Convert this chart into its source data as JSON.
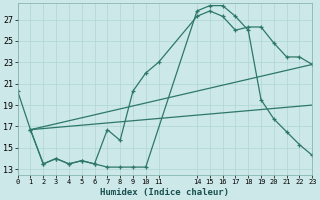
{
  "xlabel": "Humidex (Indice chaleur)",
  "bg_color": "#cde8e8",
  "line_color": "#2d7868",
  "grid_color": "#aed4d4",
  "xlim": [
    0,
    23
  ],
  "ylim": [
    12.5,
    28.5
  ],
  "yticks": [
    13,
    15,
    17,
    19,
    21,
    23,
    25,
    27
  ],
  "xtick_positions": [
    0,
    1,
    2,
    3,
    4,
    5,
    6,
    7,
    8,
    9,
    10,
    11,
    14,
    15,
    16,
    17,
    18,
    19,
    20,
    21,
    22,
    23
  ],
  "xtick_labels": [
    "0",
    "1",
    "2",
    "3",
    "4",
    "5",
    "6",
    "7",
    "8",
    "9",
    "10",
    "11",
    "14",
    "15",
    "16",
    "17",
    "18",
    "19",
    "20",
    "21",
    "22",
    "23"
  ],
  "line1_x": [
    0,
    1,
    2,
    3,
    4,
    5,
    6,
    7,
    8,
    9,
    10,
    14,
    15,
    16,
    17,
    18,
    19,
    20,
    21,
    22,
    23
  ],
  "line1_y": [
    20.3,
    16.7,
    13.5,
    14.0,
    13.5,
    13.8,
    13.5,
    13.2,
    13.2,
    13.2,
    13.2,
    27.8,
    28.3,
    28.3,
    27.3,
    26.0,
    19.5,
    17.7,
    16.5,
    15.3,
    14.3
  ],
  "line2_x": [
    1,
    2,
    3,
    4,
    5,
    6,
    7,
    8,
    9,
    10,
    11,
    14,
    15,
    16,
    17,
    18,
    19,
    20,
    21,
    22,
    23
  ],
  "line2_y": [
    16.7,
    13.5,
    14.0,
    13.5,
    13.8,
    13.5,
    16.7,
    15.7,
    20.3,
    22.0,
    23.0,
    27.3,
    27.8,
    27.3,
    26.0,
    26.3,
    26.3,
    24.8,
    23.5,
    23.5,
    22.8
  ],
  "line3_x": [
    1,
    23
  ],
  "line3_y": [
    16.7,
    22.8
  ],
  "line4_x": [
    1,
    23
  ],
  "line4_y": [
    16.7,
    19.0
  ]
}
